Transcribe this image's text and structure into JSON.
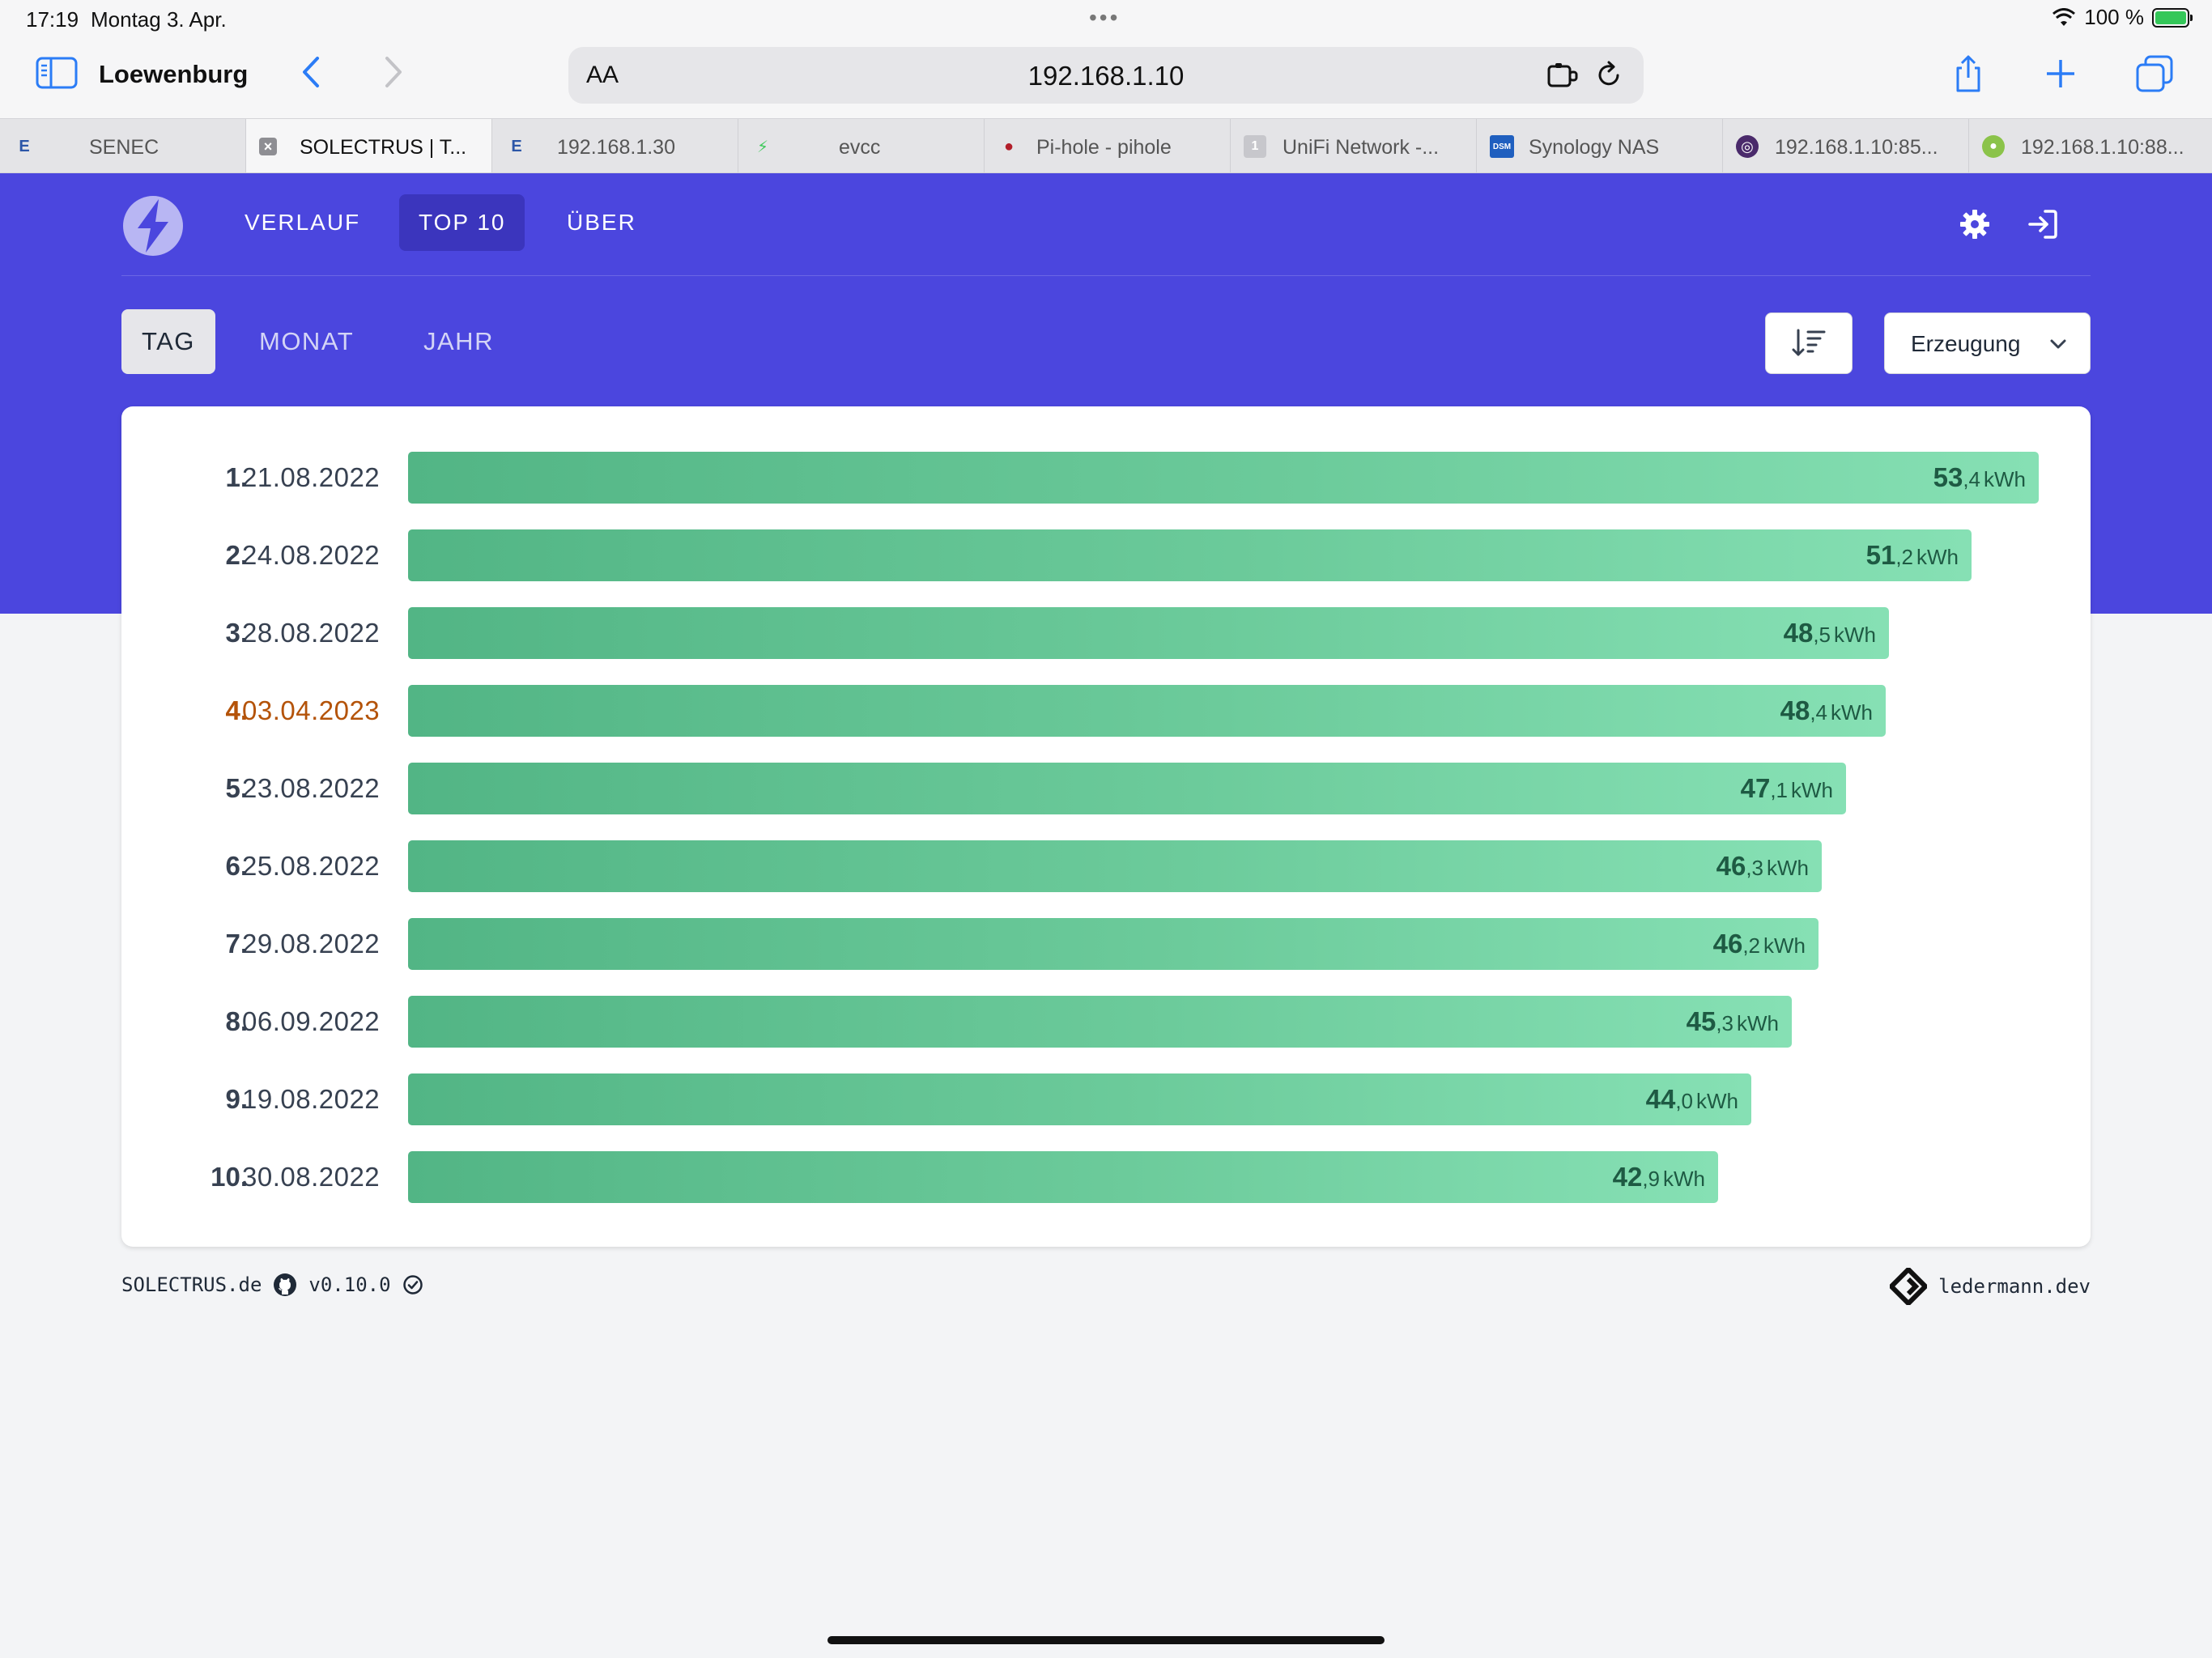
{
  "status_bar": {
    "time": "17:19",
    "date": "Montag 3. Apr.",
    "battery": "100 %"
  },
  "browser": {
    "title": "Loewenburg",
    "address": "192.168.1.10",
    "aa_label": "AA",
    "tabs": [
      {
        "label": "SENEC",
        "icon": "E"
      },
      {
        "label": "SOLECTRUS | T...",
        "icon": "×"
      },
      {
        "label": "192.168.1.30",
        "icon": "E"
      },
      {
        "label": "evcc",
        "icon": "⚡"
      },
      {
        "label": "Pi-hole - pihole",
        "icon": "●"
      },
      {
        "label": "UniFi Network -...",
        "icon": "1"
      },
      {
        "label": "Synology NAS",
        "icon": "DSM"
      },
      {
        "label": "192.168.1.10:85...",
        "icon": "◎"
      },
      {
        "label": "192.168.1.10:88...",
        "icon": "●"
      }
    ]
  },
  "nav": {
    "links": [
      "VERLAUF",
      "TOP 10",
      "ÜBER"
    ],
    "active": "TOP 10"
  },
  "periods": {
    "items": [
      "TAG",
      "MONAT",
      "JAHR"
    ],
    "active": "TAG"
  },
  "selector": {
    "value": "Erzeugung"
  },
  "ranking": {
    "unit": "kWh",
    "rows": [
      {
        "rank": "1.",
        "date": "21.08.2022",
        "int": "53",
        "frac": ",4",
        "value": 53.4
      },
      {
        "rank": "2.",
        "date": "24.08.2022",
        "int": "51",
        "frac": ",2",
        "value": 51.2
      },
      {
        "rank": "3.",
        "date": "28.08.2022",
        "int": "48",
        "frac": ",5",
        "value": 48.5
      },
      {
        "rank": "4.",
        "date": "03.04.2023",
        "int": "48",
        "frac": ",4",
        "value": 48.4,
        "current": true
      },
      {
        "rank": "5.",
        "date": "23.08.2022",
        "int": "47",
        "frac": ",1",
        "value": 47.1
      },
      {
        "rank": "6.",
        "date": "25.08.2022",
        "int": "46",
        "frac": ",3",
        "value": 46.3
      },
      {
        "rank": "7.",
        "date": "29.08.2022",
        "int": "46",
        "frac": ",2",
        "value": 46.2
      },
      {
        "rank": "8.",
        "date": "06.09.2022",
        "int": "45",
        "frac": ",3",
        "value": 45.3
      },
      {
        "rank": "9.",
        "date": "19.08.2022",
        "int": "44",
        "frac": ",0",
        "value": 44.0
      },
      {
        "rank": "10.",
        "date": "30.08.2022",
        "int": "42",
        "frac": ",9",
        "value": 42.9
      }
    ]
  },
  "footer": {
    "site": "SOLECTRUS.de",
    "version": "v0.10.0",
    "credit": "ledermann.dev"
  },
  "colors": {
    "primary": "#4b46de",
    "bar_start": "#52b585",
    "bar_end": "#86e0b4",
    "highlight": "#b45309"
  }
}
